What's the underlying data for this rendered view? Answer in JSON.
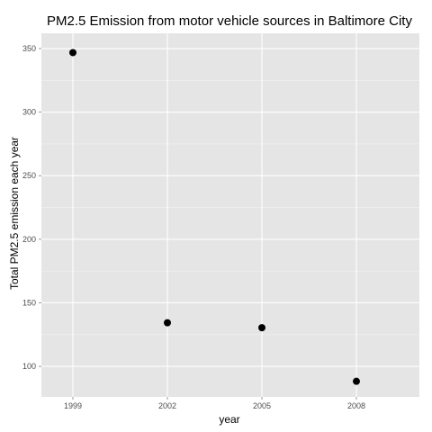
{
  "chart_data": {
    "type": "scatter",
    "title": "PM2.5 Emission from motor vehicle sources in Baltimore City",
    "xlabel": "year",
    "ylabel": "Total PM2.5 emission each year",
    "x": [
      1999,
      2002,
      2005,
      2008
    ],
    "y": [
      346.82,
      134.31,
      130.43,
      88.28
    ],
    "x_ticks": [
      "1999",
      "2002",
      "2005",
      "2008"
    ],
    "y_ticks": [
      "100",
      "150",
      "200",
      "250",
      "300",
      "350"
    ],
    "xlim": [
      1998,
      2010
    ],
    "ylim": [
      76,
      362
    ],
    "grid": true,
    "background": "#e5e5e5",
    "grid_color": "#ffffff",
    "point_color": "#000000"
  }
}
